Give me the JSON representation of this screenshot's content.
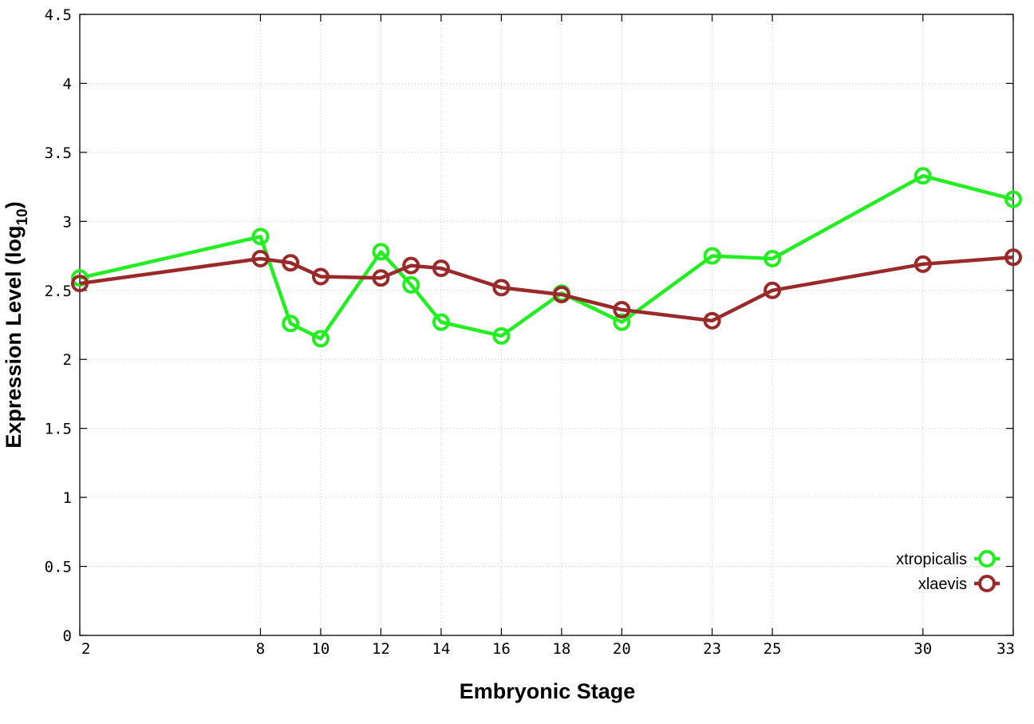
{
  "chart_data": {
    "type": "line",
    "title": "",
    "xlabel": "Embryonic Stage",
    "ylabel_main": "Expression Level (log",
    "ylabel_sub": "10",
    "ylabel_close": ")",
    "x": [
      2,
      8,
      9,
      10,
      12,
      13,
      14,
      16,
      18,
      20,
      23,
      25,
      30,
      33
    ],
    "xticks": [
      2,
      8,
      10,
      12,
      14,
      16,
      18,
      20,
      23,
      25,
      30,
      33
    ],
    "xtick_labels": [
      "2",
      "8",
      "10",
      "12",
      "14",
      "16",
      "18",
      "20",
      "23",
      "25",
      "30",
      "33"
    ],
    "xlim": [
      2,
      33
    ],
    "ylim": [
      0,
      4.5
    ],
    "yticks": [
      0,
      0.5,
      1,
      1.5,
      2,
      2.5,
      3,
      3.5,
      4,
      4.5
    ],
    "ytick_labels": [
      "0",
      "0.5",
      "1",
      "1.5",
      "2",
      "2.5",
      "3",
      "3.5",
      "4",
      "4.5"
    ],
    "grid": true,
    "legend_position": "bottom-right",
    "series": [
      {
        "name": "xtropicalis",
        "color": "#22ee22",
        "values": [
          2.59,
          2.89,
          2.26,
          2.15,
          2.78,
          2.54,
          2.27,
          2.17,
          2.48,
          2.27,
          2.75,
          2.73,
          3.33,
          3.16
        ]
      },
      {
        "name": "xlaevis",
        "color": "#9a2a2a",
        "values": [
          2.55,
          2.73,
          2.7,
          2.6,
          2.59,
          2.68,
          2.66,
          2.52,
          2.47,
          2.36,
          2.28,
          2.5,
          2.69,
          2.74
        ]
      }
    ]
  }
}
